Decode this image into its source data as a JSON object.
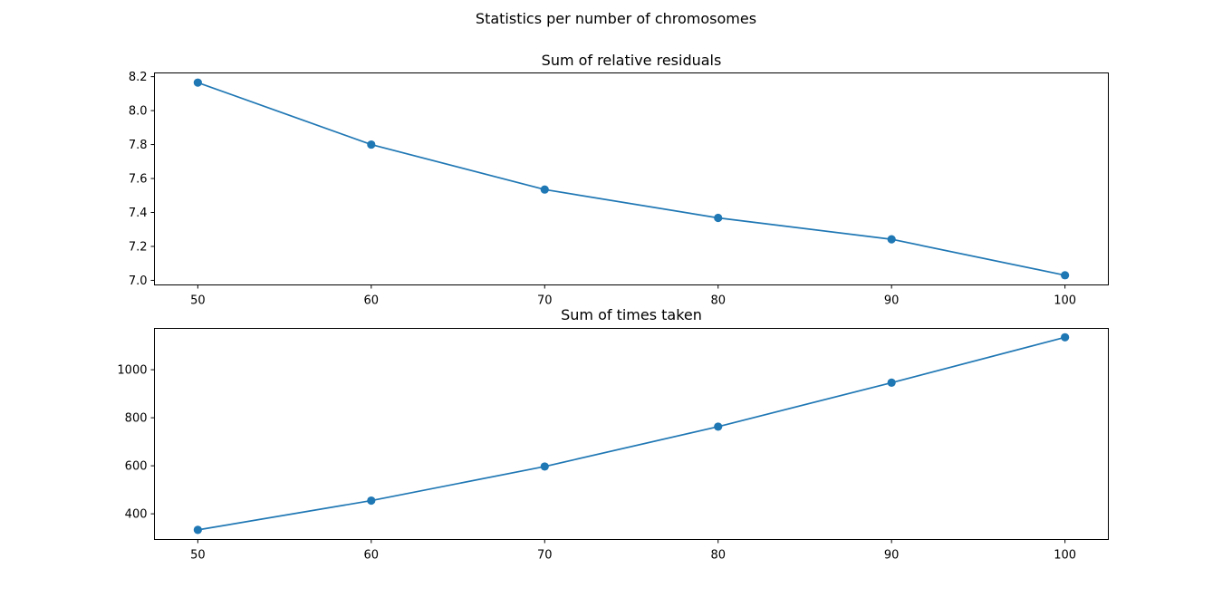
{
  "figure": {
    "suptitle": "Statistics per number of chromosomes"
  },
  "chart_data": [
    {
      "type": "line",
      "title": "Sum of relative residuals",
      "xlabel": "",
      "ylabel": "",
      "x": [
        50,
        60,
        70,
        80,
        90,
        100
      ],
      "xticks": [
        50,
        60,
        70,
        80,
        90,
        100
      ],
      "xtick_labels": [
        "50",
        "60",
        "70",
        "80",
        "90",
        "100"
      ],
      "xlim": [
        47.5,
        102.5
      ],
      "series": [
        {
          "values": [
            8.165,
            7.8,
            7.535,
            7.368,
            7.242,
            7.03
          ],
          "color": "#1f77b4",
          "marker": "circle"
        }
      ],
      "yticks": [
        7.0,
        7.2,
        7.4,
        7.6,
        7.8,
        8.0,
        8.2
      ],
      "ytick_labels": [
        "7.0",
        "7.2",
        "7.4",
        "7.6",
        "7.8",
        "8.0",
        "8.2"
      ],
      "ylim": [
        6.973,
        8.222
      ],
      "grid": false,
      "legend": "none"
    },
    {
      "type": "line",
      "title": "Sum of times taken",
      "xlabel": "",
      "ylabel": "",
      "x": [
        50,
        60,
        70,
        80,
        90,
        100
      ],
      "xticks": [
        50,
        60,
        70,
        80,
        90,
        100
      ],
      "xtick_labels": [
        "50",
        "60",
        "70",
        "80",
        "90",
        "100"
      ],
      "xlim": [
        47.5,
        102.5
      ],
      "series": [
        {
          "values": [
            333,
            455,
            597,
            763,
            946,
            1135
          ],
          "color": "#1f77b4",
          "marker": "circle"
        }
      ],
      "yticks": [
        400,
        600,
        800,
        1000
      ],
      "ytick_labels": [
        "400",
        "600",
        "800",
        "1000"
      ],
      "ylim": [
        293,
        1172
      ],
      "grid": false,
      "legend": "none"
    }
  ]
}
